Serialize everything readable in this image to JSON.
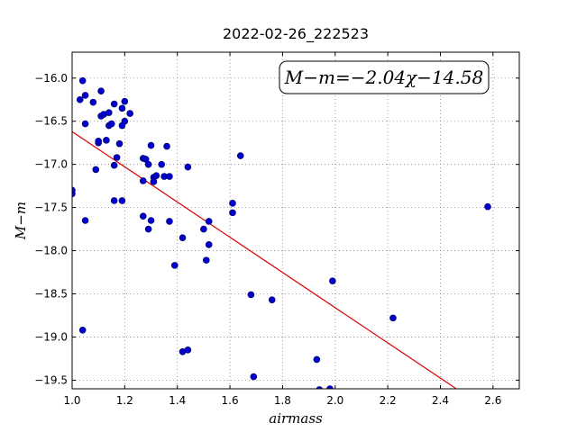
{
  "chart_data": {
    "type": "scatter",
    "title": "2022-02-26_222523",
    "xlabel": "airmass",
    "ylabel": "M−m",
    "xlim": [
      1.0,
      2.7
    ],
    "ylim": [
      -19.6,
      -15.7
    ],
    "y_inverted": true,
    "grid": true,
    "x_ticks": [
      1.0,
      1.2,
      1.4,
      1.6,
      1.8,
      2.0,
      2.2,
      2.4,
      2.6
    ],
    "x_tick_labels": [
      "1.0",
      "1.2",
      "1.4",
      "1.6",
      "1.8",
      "2.0",
      "2.2",
      "2.4",
      "2.6"
    ],
    "y_ticks": [
      -16.0,
      -16.5,
      -17.0,
      -17.5,
      -18.0,
      -18.5,
      -19.0,
      -19.5
    ],
    "y_tick_labels": [
      "−16.0",
      "−16.5",
      "−17.0",
      "−17.5",
      "−18.0",
      "−18.5",
      "−19.0",
      "−19.5"
    ],
    "annotation": "M−m=−2.04χ−14.58",
    "colors": {
      "points": "#0000cc",
      "fit": "#dd0000"
    },
    "fit": {
      "slope": -2.04,
      "intercept": -14.58
    },
    "points": [
      {
        "x": 1.0,
        "y": -17.3
      },
      {
        "x": 1.0,
        "y": -17.34
      },
      {
        "x": 1.03,
        "y": -16.25
      },
      {
        "x": 1.04,
        "y": -16.03
      },
      {
        "x": 1.05,
        "y": -16.2
      },
      {
        "x": 1.05,
        "y": -16.53
      },
      {
        "x": 1.05,
        "y": -17.65
      },
      {
        "x": 1.04,
        "y": -18.92
      },
      {
        "x": 1.08,
        "y": -16.28
      },
      {
        "x": 1.09,
        "y": -17.06
      },
      {
        "x": 1.1,
        "y": -16.75
      },
      {
        "x": 1.1,
        "y": -16.73
      },
      {
        "x": 1.11,
        "y": -16.44
      },
      {
        "x": 1.12,
        "y": -16.42
      },
      {
        "x": 1.11,
        "y": -16.15
      },
      {
        "x": 1.13,
        "y": -16.72
      },
      {
        "x": 1.14,
        "y": -16.4
      },
      {
        "x": 1.14,
        "y": -16.55
      },
      {
        "x": 1.15,
        "y": -16.53
      },
      {
        "x": 1.16,
        "y": -17.01
      },
      {
        "x": 1.16,
        "y": -16.3
      },
      {
        "x": 1.17,
        "y": -16.92
      },
      {
        "x": 1.16,
        "y": -17.42
      },
      {
        "x": 1.18,
        "y": -16.76
      },
      {
        "x": 1.19,
        "y": -16.35
      },
      {
        "x": 1.19,
        "y": -16.55
      },
      {
        "x": 1.2,
        "y": -16.27
      },
      {
        "x": 1.2,
        "y": -16.5
      },
      {
        "x": 1.19,
        "y": -17.42
      },
      {
        "x": 1.22,
        "y": -16.41
      },
      {
        "x": 1.27,
        "y": -16.93
      },
      {
        "x": 1.28,
        "y": -16.94
      },
      {
        "x": 1.27,
        "y": -17.19
      },
      {
        "x": 1.27,
        "y": -17.6
      },
      {
        "x": 1.29,
        "y": -17.75
      },
      {
        "x": 1.29,
        "y": -17.0
      },
      {
        "x": 1.3,
        "y": -16.78
      },
      {
        "x": 1.3,
        "y": -17.65
      },
      {
        "x": 1.31,
        "y": -17.15
      },
      {
        "x": 1.32,
        "y": -17.13
      },
      {
        "x": 1.31,
        "y": -17.2
      },
      {
        "x": 1.34,
        "y": -17.0
      },
      {
        "x": 1.35,
        "y": -17.14
      },
      {
        "x": 1.36,
        "y": -16.79
      },
      {
        "x": 1.37,
        "y": -17.14
      },
      {
        "x": 1.37,
        "y": -17.66
      },
      {
        "x": 1.39,
        "y": -18.17
      },
      {
        "x": 1.42,
        "y": -17.85
      },
      {
        "x": 1.42,
        "y": -19.17
      },
      {
        "x": 1.44,
        "y": -19.15
      },
      {
        "x": 1.44,
        "y": -17.03
      },
      {
        "x": 1.5,
        "y": -17.75
      },
      {
        "x": 1.51,
        "y": -18.11
      },
      {
        "x": 1.52,
        "y": -17.66
      },
      {
        "x": 1.52,
        "y": -17.93
      },
      {
        "x": 1.61,
        "y": -17.45
      },
      {
        "x": 1.61,
        "y": -17.56
      },
      {
        "x": 1.64,
        "y": -16.9
      },
      {
        "x": 1.68,
        "y": -18.51
      },
      {
        "x": 1.69,
        "y": -19.46
      },
      {
        "x": 1.76,
        "y": -18.57
      },
      {
        "x": 1.93,
        "y": -19.26
      },
      {
        "x": 1.94,
        "y": -19.61
      },
      {
        "x": 1.98,
        "y": -19.6
      },
      {
        "x": 1.99,
        "y": -18.35
      },
      {
        "x": 2.22,
        "y": -18.78
      },
      {
        "x": 2.58,
        "y": -17.49
      }
    ]
  }
}
